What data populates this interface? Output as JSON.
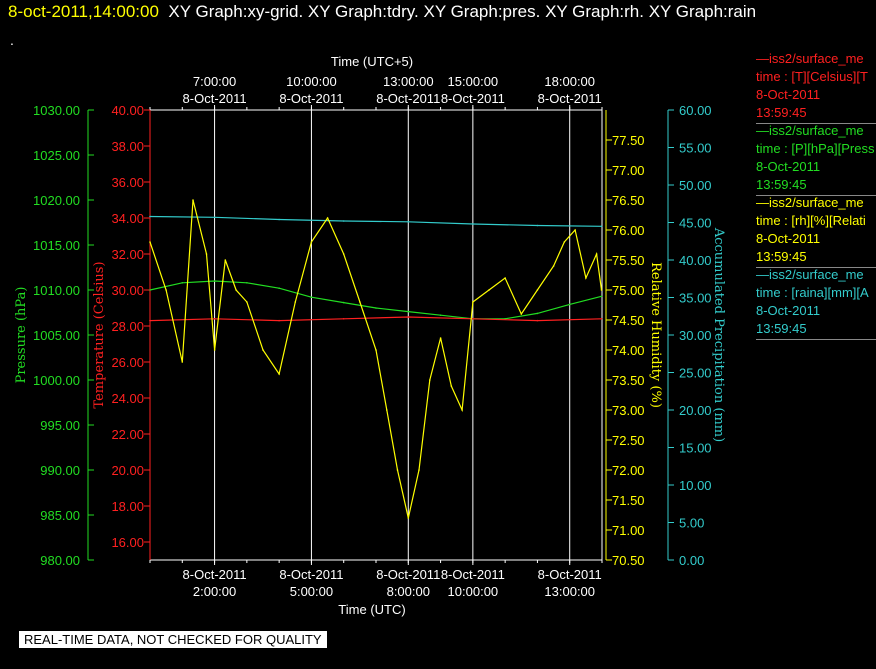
{
  "header": {
    "datetime": "8-oct-2011,14:00:00",
    "titles": "XY Graph:xy-grid.  XY Graph:tdry.  XY Graph:pres.  XY Graph:rh.  XY Graph:rain",
    "dot": "."
  },
  "quality_banner": "REAL-TIME DATA, NOT CHECKED FOR QUALITY",
  "colors": {
    "temperature": "#ff2020",
    "pressure": "#22dd22",
    "humidity": "#ffff00",
    "precipitation": "#33cccc",
    "grid": "#ffffff",
    "background": "#000000"
  },
  "legend": [
    {
      "line1": "—iss2/surface_me",
      "line2": "time : [T][Celsius][T",
      "line3": "8-Oct-2011",
      "line4": "13:59:45",
      "color": "#ff2020"
    },
    {
      "line1": "—iss2/surface_me",
      "line2": "time : [P][hPa][Press",
      "line3": "8-Oct-2011",
      "line4": "13:59:45",
      "color": "#22dd22"
    },
    {
      "line1": "—iss2/surface_me",
      "line2": "time : [rh][%][Relati",
      "line3": "8-Oct-2011",
      "line4": "13:59:45",
      "color": "#ffff00"
    },
    {
      "line1": "—iss2/surface_me",
      "line2": "time : [raina][mm][A",
      "line3": "8-Oct-2011",
      "line4": "13:59:45",
      "color": "#33cccc"
    }
  ],
  "chart_data": {
    "type": "line",
    "x_range": [
      "2011-10-08 00:00",
      "2011-10-08 14:00"
    ],
    "x_bottom_title": "Time (UTC)",
    "x_top_title": "Time (UTC+5)",
    "grid": true,
    "vertical_gridlines_utc": [
      "02:00",
      "05:00",
      "08:00",
      "10:00",
      "13:00"
    ],
    "bottom_ticks": [
      {
        "time": "02:00",
        "date": "8-Oct-2011",
        "label": "2:00:00"
      },
      {
        "time": "05:00",
        "date": "8-Oct-2011",
        "label": "5:00:00"
      },
      {
        "time": "08:00",
        "date": "8-Oct-2011",
        "label": "8:00:00"
      },
      {
        "time": "10:00",
        "date": "8-Oct-2011",
        "label": "10:00:00"
      },
      {
        "time": "13:00",
        "date": "8-Oct-2011",
        "label": "13:00:00"
      }
    ],
    "top_ticks": [
      {
        "time": "02:00",
        "date": "8-Oct-2011",
        "label": "7:00:00"
      },
      {
        "time": "05:00",
        "date": "8-Oct-2011",
        "label": "10:00:00"
      },
      {
        "time": "08:00",
        "date": "8-Oct-2011",
        "label": "13:00:00"
      },
      {
        "time": "10:00",
        "date": "8-Oct-2011",
        "label": "15:00:00"
      },
      {
        "time": "13:00",
        "date": "8-Oct-2011",
        "label": "18:00:00"
      }
    ],
    "y_axes": {
      "pressure": {
        "label": "Pressure (hPa)",
        "range": [
          980,
          1030
        ],
        "ticks": [
          "980.00",
          "985.00",
          "990.00",
          "995.00",
          "1000.00",
          "1005.00",
          "1010.00",
          "1015.00",
          "1020.00",
          "1025.00",
          "1030.00"
        ]
      },
      "temperature": {
        "label": "Temperature (Celsius)",
        "range": [
          15,
          40
        ],
        "ticks": [
          "16.00",
          "18.00",
          "20.00",
          "22.00",
          "24.00",
          "26.00",
          "28.00",
          "30.00",
          "32.00",
          "34.00",
          "36.00",
          "38.00",
          "40.00"
        ]
      },
      "humidity": {
        "label": "Relative Humidity (%)",
        "range": [
          70.5,
          78
        ],
        "ticks": [
          "70.50",
          "71.00",
          "71.50",
          "72.00",
          "72.50",
          "73.00",
          "73.50",
          "74.00",
          "74.50",
          "75.00",
          "75.50",
          "76.00",
          "76.50",
          "77.00",
          "77.50"
        ]
      },
      "precipitation": {
        "label": "Accumulated Precipitation (mm)",
        "range": [
          0,
          60
        ],
        "ticks": [
          "0.00",
          "5.00",
          "10.00",
          "15.00",
          "20.00",
          "25.00",
          "30.00",
          "35.00",
          "40.00",
          "45.00",
          "50.00",
          "55.00",
          "60.00"
        ]
      }
    },
    "series": [
      {
        "name": "iss2/surface_me",
        "axis": "temperature",
        "x": [
          "00:00",
          "02:00",
          "04:00",
          "06:00",
          "08:00",
          "10:00",
          "12:00",
          "13:59"
        ],
        "y": [
          28.3,
          28.4,
          28.3,
          28.4,
          28.5,
          28.4,
          28.3,
          28.4
        ]
      },
      {
        "name": "iss2/surface_me",
        "axis": "pressure",
        "x": [
          "00:00",
          "01:00",
          "02:00",
          "03:00",
          "04:00",
          "05:00",
          "06:00",
          "07:00",
          "08:00",
          "09:00",
          "10:00",
          "11:00",
          "12:00",
          "13:00",
          "13:59"
        ],
        "y": [
          1010.0,
          1010.8,
          1011.0,
          1010.8,
          1010.2,
          1009.2,
          1008.6,
          1008.0,
          1007.6,
          1007.2,
          1006.8,
          1006.8,
          1007.4,
          1008.4,
          1009.3
        ]
      },
      {
        "name": "iss2/surface_me",
        "axis": "humidity",
        "x": [
          "00:00",
          "00:30",
          "01:00",
          "01:20",
          "01:45",
          "02:00",
          "02:20",
          "02:40",
          "03:00",
          "03:30",
          "04:00",
          "04:30",
          "05:00",
          "05:30",
          "06:00",
          "06:30",
          "07:00",
          "07:20",
          "07:40",
          "08:00",
          "08:20",
          "08:40",
          "09:00",
          "09:20",
          "09:40",
          "10:00",
          "10:30",
          "11:00",
          "11:30",
          "12:00",
          "12:30",
          "12:50",
          "13:10",
          "13:30",
          "13:50",
          "13:59"
        ],
        "y": [
          75.8,
          75.0,
          73.8,
          76.5,
          75.6,
          74.0,
          75.5,
          75.0,
          74.8,
          74.0,
          73.6,
          74.8,
          75.8,
          76.2,
          75.6,
          74.8,
          74.0,
          73.0,
          72.0,
          71.2,
          72.0,
          73.5,
          74.2,
          73.4,
          73.0,
          74.8,
          75.0,
          75.2,
          74.6,
          75.0,
          75.4,
          75.8,
          76.0,
          75.2,
          75.6,
          75.0
        ]
      },
      {
        "name": "iss2/surface_me",
        "axis": "precipitation",
        "x": [
          "00:00",
          "02:00",
          "04:00",
          "06:00",
          "08:00",
          "10:00",
          "12:00",
          "13:59"
        ],
        "y": [
          45.8,
          45.7,
          45.4,
          45.2,
          45.1,
          44.8,
          44.6,
          44.5
        ]
      }
    ]
  }
}
